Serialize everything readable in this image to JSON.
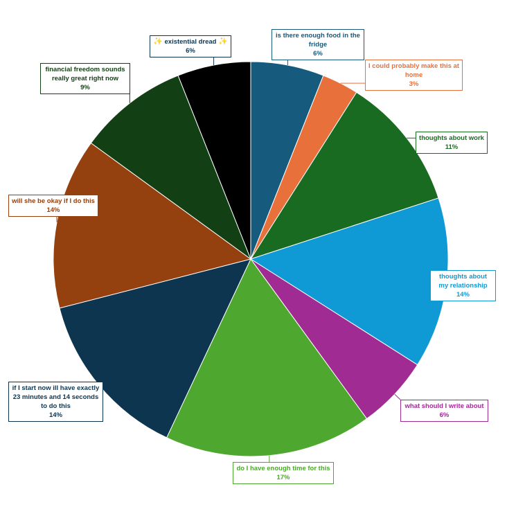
{
  "chart_data": {
    "type": "pie",
    "title": "",
    "slices": [
      {
        "label": "is there enough food in the fridge",
        "value": 6,
        "value_label": "6%",
        "color": "#165a7e",
        "label_color": "#165a7e"
      },
      {
        "label": "I could probably make this at home",
        "value": 3,
        "value_label": "3%",
        "color": "#e8703a",
        "label_color": "#e8703a"
      },
      {
        "label": "thoughts about work",
        "value": 11,
        "value_label": "11%",
        "color": "#1a6b22",
        "label_color": "#1a6b22"
      },
      {
        "label": "thoughts about my relationship",
        "value": 14,
        "value_label": "14%",
        "color": "#0f9ad5",
        "label_color": "#0f9ad5"
      },
      {
        "label": "what should I write about",
        "value": 6,
        "value_label": "6%",
        "color": "#a02b93",
        "label_color": "#a02b93"
      },
      {
        "label": "do I have enough time for this",
        "value": 17,
        "value_label": "17%",
        "color": "#4ea72e",
        "label_color": "#4ea72e"
      },
      {
        "label": "if I start now ill have exactly 23 minutes and 14 seconds to do this",
        "value": 14,
        "value_label": "14%",
        "color": "#0e3550",
        "label_color": "#0e3550"
      },
      {
        "label": "will she be okay if I do this",
        "value": 14,
        "value_label": "14%",
        "color": "#95400f",
        "label_color": "#95400f"
      },
      {
        "label": "financial freedom sounds really great right now",
        "value": 9,
        "value_label": "9%",
        "color": "#123f13",
        "label_color": "#123f13"
      },
      {
        "label": "existential dread",
        "value": 6,
        "value_label": "6%",
        "color": "#000000",
        "label_color": "#0e3550",
        "decoration": "star-icon"
      }
    ]
  }
}
